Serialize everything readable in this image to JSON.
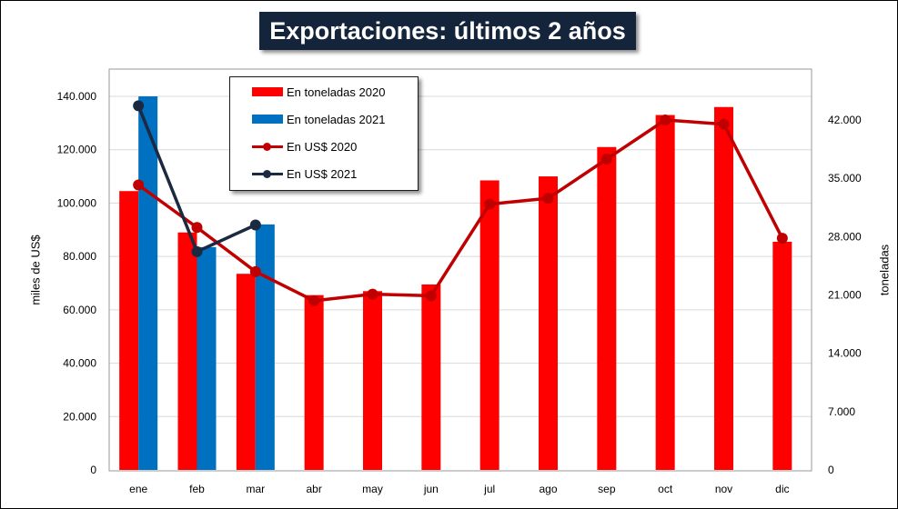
{
  "chart_data": {
    "type": "bar",
    "title": "Exportaciones: últimos 2 años",
    "categories": [
      "ene",
      "feb",
      "mar",
      "abr",
      "may",
      "jun",
      "jul",
      "ago",
      "sep",
      "oct",
      "nov",
      "dic"
    ],
    "y_left": {
      "label": "miles de US$",
      "ylim": [
        0,
        140000
      ],
      "ticks": [
        "0",
        "20.000",
        "40.000",
        "60.000",
        "80.000",
        "100.000",
        "120.000",
        "140.000"
      ]
    },
    "y_right": {
      "label": "toneladas",
      "ylim": [
        0,
        45500
      ],
      "ticks": [
        "0",
        "7.000",
        "14.000",
        "21.000",
        "28.000",
        "35.000",
        "42.000"
      ]
    },
    "series": [
      {
        "name": "En toneladas 2020",
        "type": "bar",
        "axis": "left",
        "color": "#ff0000",
        "values": [
          104500,
          89000,
          73500,
          65500,
          67000,
          69500,
          108500,
          110000,
          121000,
          133000,
          136000,
          85500
        ]
      },
      {
        "name": "En toneladas 2021",
        "type": "bar",
        "axis": "left",
        "color": "#0070c0",
        "values": [
          140000,
          83500,
          92000,
          null,
          null,
          null,
          null,
          null,
          null,
          null,
          null,
          null
        ]
      },
      {
        "name": "En US$ 2020",
        "type": "line",
        "axis": "right",
        "color": "#c00000",
        "values": [
          34200,
          29100,
          23800,
          20300,
          21100,
          20900,
          31900,
          32600,
          37300,
          42000,
          41500,
          27800
        ]
      },
      {
        "name": "En US$ 2021",
        "type": "line",
        "axis": "right",
        "color": "#1b2a40",
        "values": [
          43700,
          26200,
          29400,
          null,
          null,
          null,
          null,
          null,
          null,
          null,
          null,
          null
        ]
      }
    ],
    "grid": true,
    "legend_position": "top-left"
  },
  "colors": {
    "title_bg": "#14243b",
    "title_fg": "#ffffff"
  }
}
